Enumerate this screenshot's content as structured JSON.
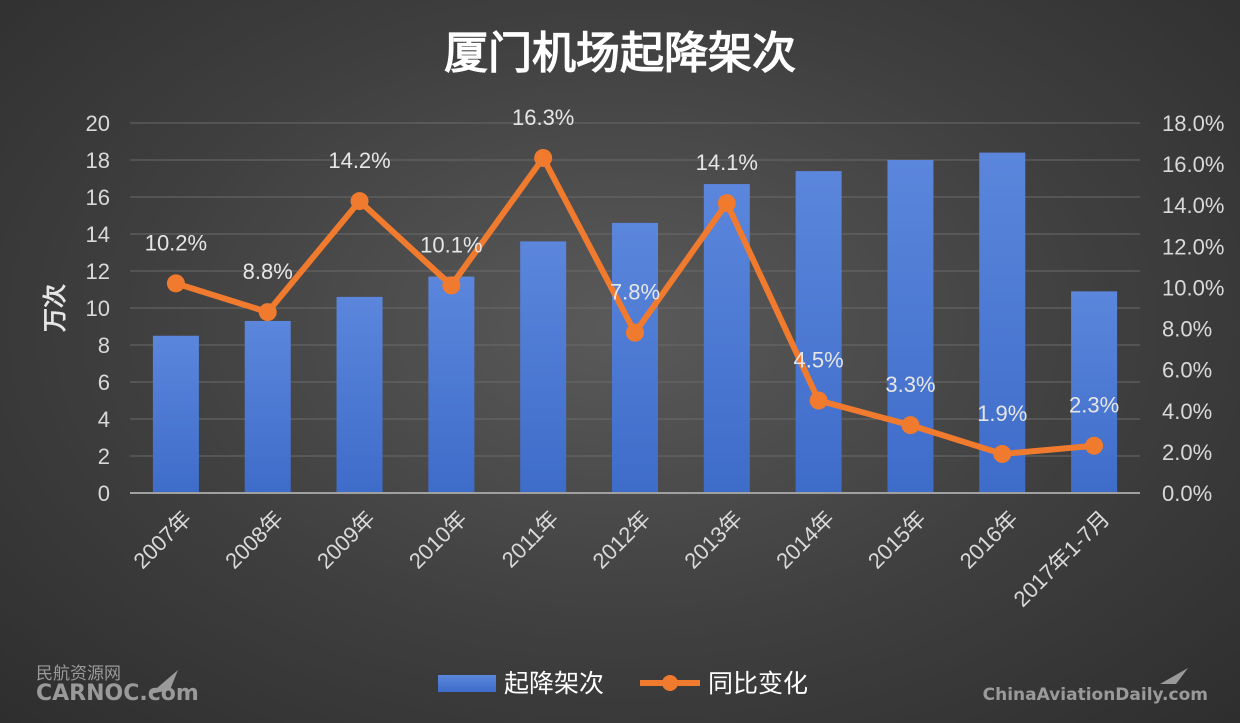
{
  "chart_data": {
    "type": "bar",
    "title": "厦门机场起降架次",
    "ylabel": "万次",
    "categories": [
      "2007年",
      "2008年",
      "2009年",
      "2010年",
      "2011年",
      "2012年",
      "2013年",
      "2014年",
      "2015年",
      "2016年",
      "2017年1-7月"
    ],
    "ylim": [
      0,
      20
    ],
    "yticks": [
      0,
      2,
      4,
      6,
      8,
      10,
      12,
      14,
      16,
      18,
      20
    ],
    "y2lim": [
      0,
      18
    ],
    "y2ticks": [
      "0.0%",
      "2.0%",
      "4.0%",
      "6.0%",
      "8.0%",
      "10.0%",
      "12.0%",
      "14.0%",
      "16.0%",
      "18.0%"
    ],
    "grid": true,
    "legend_position": "bottom",
    "series": [
      {
        "name": "起降架次",
        "type": "bar",
        "axis": "left",
        "color": "#4a78d6",
        "values": [
          8.5,
          9.3,
          10.6,
          11.7,
          13.6,
          14.6,
          16.7,
          17.4,
          18.0,
          18.4,
          10.9
        ]
      },
      {
        "name": "同比变化",
        "type": "line",
        "axis": "right",
        "color": "#f07a2e",
        "values": [
          10.2,
          8.8,
          14.2,
          10.1,
          16.3,
          7.8,
          14.1,
          4.5,
          3.3,
          1.9,
          2.3
        ],
        "labels": [
          "10.2%",
          "8.8%",
          "14.2%",
          "10.1%",
          "16.3%",
          "7.8%",
          "14.1%",
          "4.5%",
          "3.3%",
          "1.9%",
          "2.3%"
        ]
      }
    ]
  },
  "watermarks": {
    "left_top": "民航资源网",
    "left_bottom": "CARNOC.com",
    "right": "ChinaAviationDaily.com"
  }
}
